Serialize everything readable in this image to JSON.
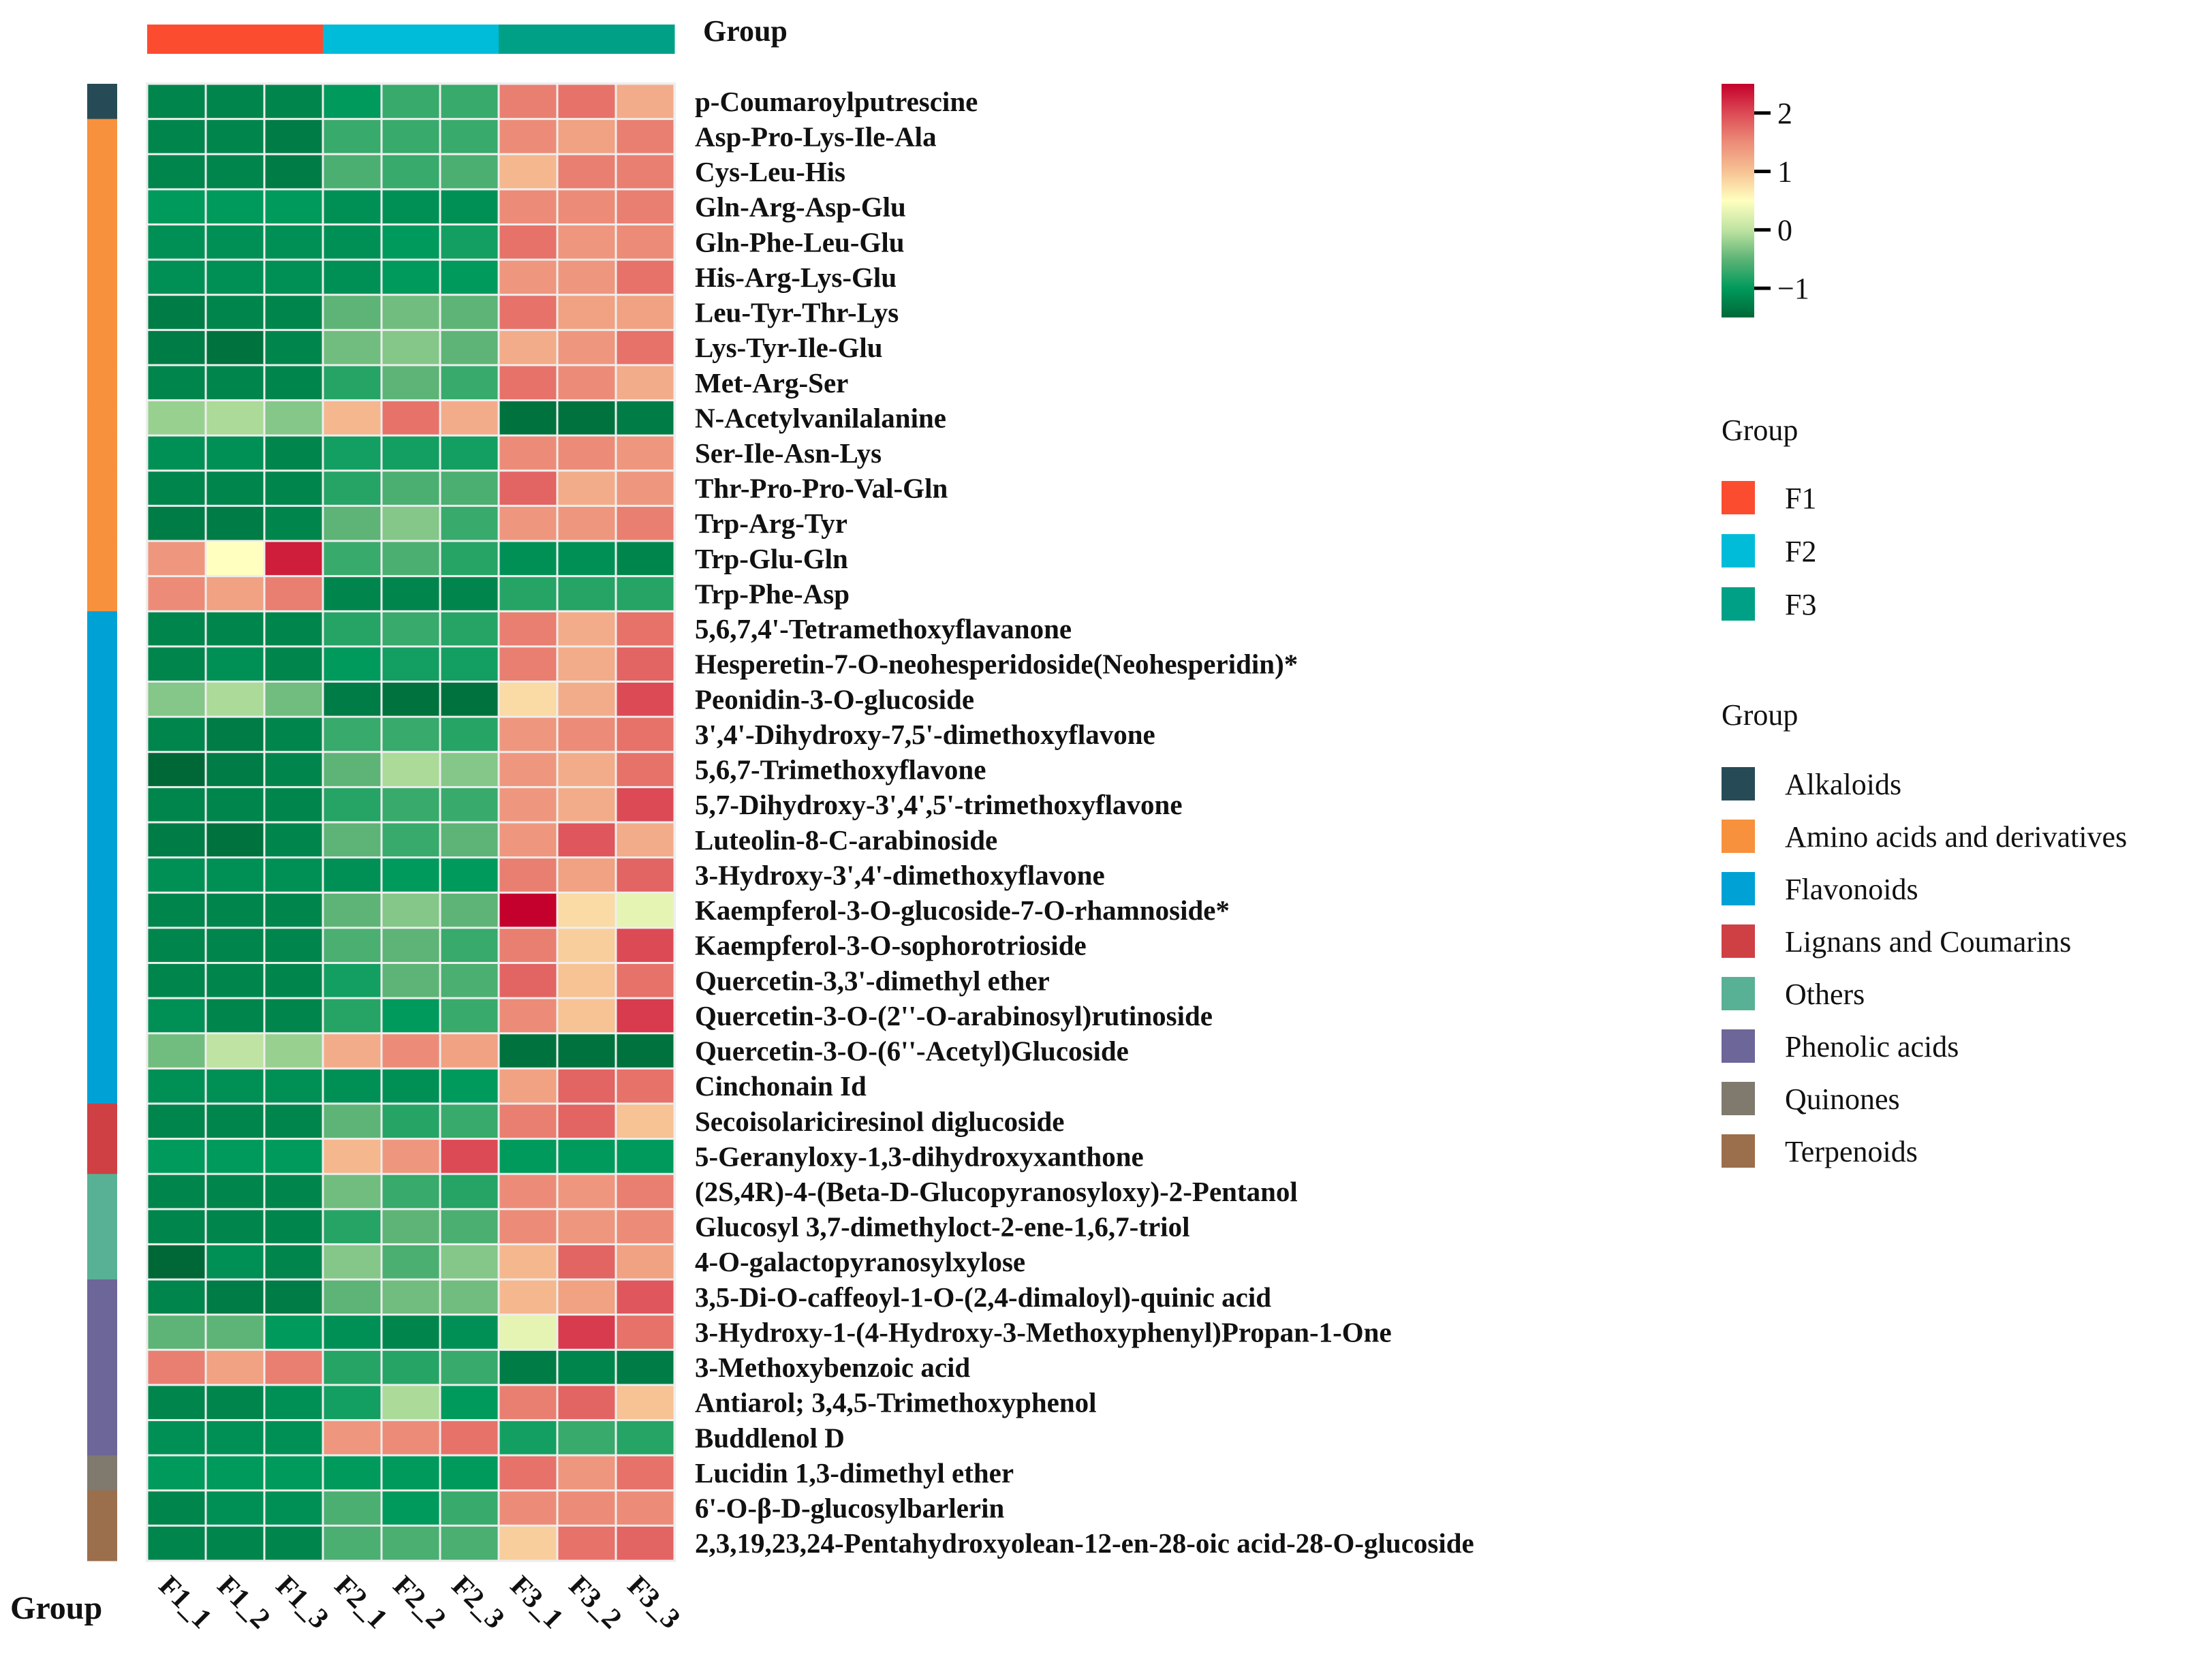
{
  "chart_data": {
    "type": "heatmap",
    "title": "",
    "top_annotation_label": "Group",
    "left_annotation_label": "Group",
    "columns": [
      "F1_1",
      "F1_2",
      "F1_3",
      "F2_1",
      "F2_2",
      "F2_3",
      "F3_1",
      "F3_2",
      "F3_3"
    ],
    "column_groups": [
      "F1",
      "F1",
      "F1",
      "F2",
      "F2",
      "F2",
      "F3",
      "F3",
      "F3"
    ],
    "rows": [
      {
        "name": "p-Coumaroylputrescine",
        "class": "Alkaloids",
        "values": [
          -1.2,
          -1.2,
          -1.2,
          -1.0,
          -0.7,
          -0.7,
          1.6,
          1.7,
          1.2
        ]
      },
      {
        "name": "Asp-Pro-Lys-Ile-Ala",
        "class": "Amino acids and derivatives",
        "values": [
          -1.2,
          -1.2,
          -1.3,
          -0.7,
          -0.7,
          -0.7,
          1.5,
          1.3,
          1.6
        ]
      },
      {
        "name": "Cys-Leu-His",
        "class": "Amino acids and derivatives",
        "values": [
          -1.2,
          -1.2,
          -1.3,
          -0.6,
          -0.7,
          -0.6,
          1.1,
          1.6,
          1.6
        ]
      },
      {
        "name": "Gln-Arg-Asp-Glu",
        "class": "Amino acids and derivatives",
        "values": [
          -1.0,
          -1.0,
          -1.0,
          -1.1,
          -1.1,
          -1.1,
          1.5,
          1.5,
          1.6
        ]
      },
      {
        "name": "Gln-Phe-Leu-Glu",
        "class": "Amino acids and derivatives",
        "values": [
          -1.1,
          -1.1,
          -1.1,
          -1.1,
          -1.0,
          -0.9,
          1.7,
          1.4,
          1.5
        ]
      },
      {
        "name": "His-Arg-Lys-Glu",
        "class": "Amino acids and derivatives",
        "values": [
          -1.1,
          -1.1,
          -1.1,
          -1.1,
          -1.0,
          -1.0,
          1.4,
          1.4,
          1.7
        ]
      },
      {
        "name": "Leu-Tyr-Thr-Lys",
        "class": "Amino acids and derivatives",
        "values": [
          -1.3,
          -1.2,
          -1.2,
          -0.5,
          -0.4,
          -0.5,
          1.7,
          1.3,
          1.3
        ]
      },
      {
        "name": "Lys-Tyr-Ile-Glu",
        "class": "Amino acids and derivatives",
        "values": [
          -1.3,
          -1.4,
          -1.2,
          -0.4,
          -0.3,
          -0.5,
          1.2,
          1.4,
          1.7
        ]
      },
      {
        "name": "Met-Arg-Ser",
        "class": "Amino acids and derivatives",
        "values": [
          -1.2,
          -1.2,
          -1.2,
          -0.8,
          -0.5,
          -0.7,
          1.7,
          1.5,
          1.2
        ]
      },
      {
        "name": "N-Acetylvanilalanine",
        "class": "Amino acids and derivatives",
        "values": [
          -0.2,
          -0.1,
          -0.3,
          1.1,
          1.7,
          1.2,
          -1.4,
          -1.4,
          -1.3
        ]
      },
      {
        "name": "Ser-Ile-Asn-Lys",
        "class": "Amino acids and derivatives",
        "values": [
          -1.1,
          -1.1,
          -1.2,
          -0.9,
          -0.9,
          -0.9,
          1.5,
          1.5,
          1.4
        ]
      },
      {
        "name": "Thr-Pro-Pro-Val-Gln",
        "class": "Amino acids and derivatives",
        "values": [
          -1.2,
          -1.2,
          -1.2,
          -0.8,
          -0.6,
          -0.6,
          1.8,
          1.2,
          1.4
        ]
      },
      {
        "name": "Trp-Arg-Tyr",
        "class": "Amino acids and derivatives",
        "values": [
          -1.3,
          -1.3,
          -1.2,
          -0.5,
          -0.3,
          -0.7,
          1.4,
          1.4,
          1.6
        ]
      },
      {
        "name": "Trp-Glu-Gln",
        "class": "Amino acids and derivatives",
        "values": [
          1.4,
          0.5,
          2.3,
          -0.7,
          -0.6,
          -0.8,
          -1.1,
          -1.1,
          -1.2
        ]
      },
      {
        "name": "Trp-Phe-Asp",
        "class": "Amino acids and derivatives",
        "values": [
          1.5,
          1.3,
          1.6,
          -1.2,
          -1.2,
          -1.2,
          -0.8,
          -0.8,
          -0.8
        ]
      },
      {
        "name": "5,6,7,4'-Tetramethoxyflavanone",
        "class": "Flavonoids",
        "values": [
          -1.2,
          -1.2,
          -1.2,
          -0.8,
          -0.7,
          -0.8,
          1.6,
          1.2,
          1.7
        ]
      },
      {
        "name": "Hesperetin-7-O-neohesperidoside(Neohesperidin)*",
        "class": "Flavonoids",
        "values": [
          -1.2,
          -1.1,
          -1.2,
          -1.0,
          -0.9,
          -0.9,
          1.6,
          1.2,
          1.8
        ]
      },
      {
        "name": "Peonidin-3-O-glucoside",
        "class": "Flavonoids",
        "values": [
          -0.3,
          -0.1,
          -0.4,
          -1.3,
          -1.4,
          -1.4,
          0.8,
          1.2,
          2.0
        ]
      },
      {
        "name": "3',4'-Dihydroxy-7,5'-dimethoxyflavone",
        "class": "Flavonoids",
        "values": [
          -1.2,
          -1.3,
          -1.2,
          -0.7,
          -0.7,
          -0.8,
          1.4,
          1.5,
          1.7
        ]
      },
      {
        "name": "5,6,7-Trimethoxyflavone",
        "class": "Flavonoids",
        "values": [
          -1.5,
          -1.3,
          -1.2,
          -0.5,
          -0.1,
          -0.3,
          1.4,
          1.2,
          1.7
        ]
      },
      {
        "name": "5,7-Dihydroxy-3',4',5'-trimethoxyflavone",
        "class": "Flavonoids",
        "values": [
          -1.2,
          -1.2,
          -1.2,
          -0.8,
          -0.7,
          -0.7,
          1.4,
          1.2,
          2.0
        ]
      },
      {
        "name": "Luteolin-8-C-arabinoside",
        "class": "Flavonoids",
        "values": [
          -1.3,
          -1.4,
          -1.2,
          -0.5,
          -0.7,
          -0.5,
          1.4,
          1.9,
          1.2
        ]
      },
      {
        "name": "3-Hydroxy-3',4'-dimethoxyflavone",
        "class": "Flavonoids",
        "values": [
          -1.1,
          -1.1,
          -1.1,
          -1.1,
          -1.0,
          -1.0,
          1.6,
          1.3,
          1.8
        ]
      },
      {
        "name": "Kaempferol-3-O-glucoside-7-O-rhamnoside*",
        "class": "Flavonoids",
        "values": [
          -1.2,
          -1.2,
          -1.2,
          -0.5,
          -0.3,
          -0.5,
          2.5,
          0.8,
          0.3
        ]
      },
      {
        "name": "Kaempferol-3-O-sophorotrioside",
        "class": "Flavonoids",
        "values": [
          -1.2,
          -1.2,
          -1.2,
          -0.6,
          -0.5,
          -0.7,
          1.6,
          0.9,
          2.0
        ]
      },
      {
        "name": "Quercetin-3,3'-dimethyl ether",
        "class": "Flavonoids",
        "values": [
          -1.2,
          -1.2,
          -1.2,
          -0.9,
          -0.5,
          -0.6,
          1.8,
          1.0,
          1.7
        ]
      },
      {
        "name": "Quercetin-3-O-(2''-O-arabinosyl)rutinoside",
        "class": "Flavonoids",
        "values": [
          -1.1,
          -1.2,
          -1.2,
          -0.8,
          -1.0,
          -0.7,
          1.5,
          1.0,
          2.1
        ]
      },
      {
        "name": "Quercetin-3-O-(6''-Acetyl)Glucoside",
        "class": "Flavonoids",
        "values": [
          -0.4,
          0.0,
          -0.2,
          1.2,
          1.5,
          1.3,
          -1.4,
          -1.4,
          -1.4
        ]
      },
      {
        "name": "Cinchonain Id",
        "class": "Flavonoids",
        "values": [
          -1.1,
          -1.1,
          -1.1,
          -1.1,
          -1.1,
          -1.0,
          1.3,
          1.8,
          1.7
        ]
      },
      {
        "name": "Secoisolariciresinol diglucoside",
        "class": "Lignans and Coumarins",
        "values": [
          -1.2,
          -1.2,
          -1.2,
          -0.5,
          -0.8,
          -0.7,
          1.6,
          1.8,
          1.0
        ]
      },
      {
        "name": "5-Geranyloxy-1,3-dihydroxyxanthone",
        "class": "Lignans and Coumarins",
        "values": [
          -1.0,
          -1.0,
          -1.0,
          1.1,
          1.4,
          2.0,
          -1.0,
          -1.0,
          -1.0
        ]
      },
      {
        "name": "(2S,4R)-4-(Beta-D-Glucopyranosyloxy)-2-Pentanol",
        "class": "Others",
        "values": [
          -1.2,
          -1.2,
          -1.2,
          -0.4,
          -0.7,
          -0.8,
          1.5,
          1.4,
          1.6
        ]
      },
      {
        "name": "Glucosyl 3,7-dimethyloct-2-ene-1,6,7-triol",
        "class": "Others",
        "values": [
          -1.2,
          -1.2,
          -1.2,
          -0.8,
          -0.5,
          -0.6,
          1.5,
          1.4,
          1.5
        ]
      },
      {
        "name": "4-O-galactopyranosylxylose",
        "class": "Others",
        "values": [
          -1.5,
          -1.1,
          -1.2,
          -0.3,
          -0.6,
          -0.3,
          1.1,
          1.8,
          1.3
        ]
      },
      {
        "name": "3,5-Di-O-caffeoyl-1-O-(2,4-dimaloyl)-quinic acid",
        "class": "Phenolic acids",
        "values": [
          -1.2,
          -1.3,
          -1.3,
          -0.5,
          -0.4,
          -0.4,
          1.1,
          1.3,
          1.9
        ]
      },
      {
        "name": "3-Hydroxy-1-(4-Hydroxy-3-Methoxyphenyl)Propan-1-One",
        "class": "Phenolic acids",
        "values": [
          -0.5,
          -0.5,
          -1.0,
          -1.1,
          -1.2,
          -1.1,
          0.3,
          2.1,
          1.7
        ]
      },
      {
        "name": "3-Methoxybenzoic acid",
        "class": "Phenolic acids",
        "values": [
          1.6,
          1.3,
          1.6,
          -0.8,
          -0.8,
          -0.7,
          -1.3,
          -1.2,
          -1.3
        ]
      },
      {
        "name": "Antiarol; 3,4,5-Trimethoxyphenol",
        "class": "Phenolic acids",
        "values": [
          -1.2,
          -1.2,
          -1.1,
          -0.9,
          -0.1,
          -1.0,
          1.6,
          1.8,
          1.0
        ]
      },
      {
        "name": "Buddlenol D",
        "class": "Phenolic acids",
        "values": [
          -1.1,
          -1.1,
          -1.1,
          1.4,
          1.5,
          1.7,
          -0.9,
          -0.7,
          -0.8
        ]
      },
      {
        "name": "Lucidin 1,3-dimethyl ether",
        "class": "Quinones",
        "values": [
          -1.0,
          -1.0,
          -1.0,
          -1.0,
          -1.0,
          -1.0,
          1.7,
          1.4,
          1.7
        ]
      },
      {
        "name": "6'-O-β-D-glucosylbarlerin",
        "class": "Terpenoids",
        "values": [
          -1.2,
          -1.1,
          -1.1,
          -0.6,
          -1.0,
          -0.7,
          1.5,
          1.5,
          1.5
        ]
      },
      {
        "name": "2,3,19,23,24-Pentahydroxyolean-12-en-28-oic acid-28-O-glucoside",
        "class": "Terpenoids",
        "values": [
          -1.2,
          -1.2,
          -1.2,
          -0.6,
          -0.6,
          -0.6,
          0.9,
          1.7,
          1.8
        ]
      }
    ],
    "color_scale": {
      "range": [
        -1.5,
        2.5
      ],
      "ticks": [
        2,
        1,
        0,
        -1
      ],
      "tick_labels": [
        "2",
        "1",
        "0",
        "−1"
      ],
      "stops": [
        {
          "v": -1.5,
          "c": "#006837"
        },
        {
          "v": -1.0,
          "c": "#009a5c"
        },
        {
          "v": -0.5,
          "c": "#5db476"
        },
        {
          "v": 0.0,
          "c": "#bfe3a2"
        },
        {
          "v": 0.5,
          "c": "#ffffbf"
        },
        {
          "v": 1.0,
          "c": "#f7c294"
        },
        {
          "v": 1.5,
          "c": "#ec8c78"
        },
        {
          "v": 2.0,
          "c": "#dc4a55"
        },
        {
          "v": 2.5,
          "c": "#c4002c"
        }
      ]
    },
    "legend_column_groups": {
      "title": "Group",
      "items": [
        {
          "label": "F1",
          "color": "#fc4c30"
        },
        {
          "label": "F2",
          "color": "#00bcd8"
        },
        {
          "label": "F3",
          "color": "#00a087"
        }
      ]
    },
    "legend_row_classes": {
      "title": "Group",
      "items": [
        {
          "label": "Alkaloids",
          "color": "#264b57"
        },
        {
          "label": "Amino acids and derivatives",
          "color": "#f7913d"
        },
        {
          "label": "Flavonoids",
          "color": "#00a1d5"
        },
        {
          "label": "Lignans and Coumarins",
          "color": "#ce4044"
        },
        {
          "label": "Others",
          "color": "#58b195"
        },
        {
          "label": "Phenolic acids",
          "color": "#6c6699"
        },
        {
          "label": "Quinones",
          "color": "#807a6e"
        },
        {
          "label": "Terpenoids",
          "color": "#9b6e4c"
        }
      ]
    },
    "legend_placement": "right"
  }
}
